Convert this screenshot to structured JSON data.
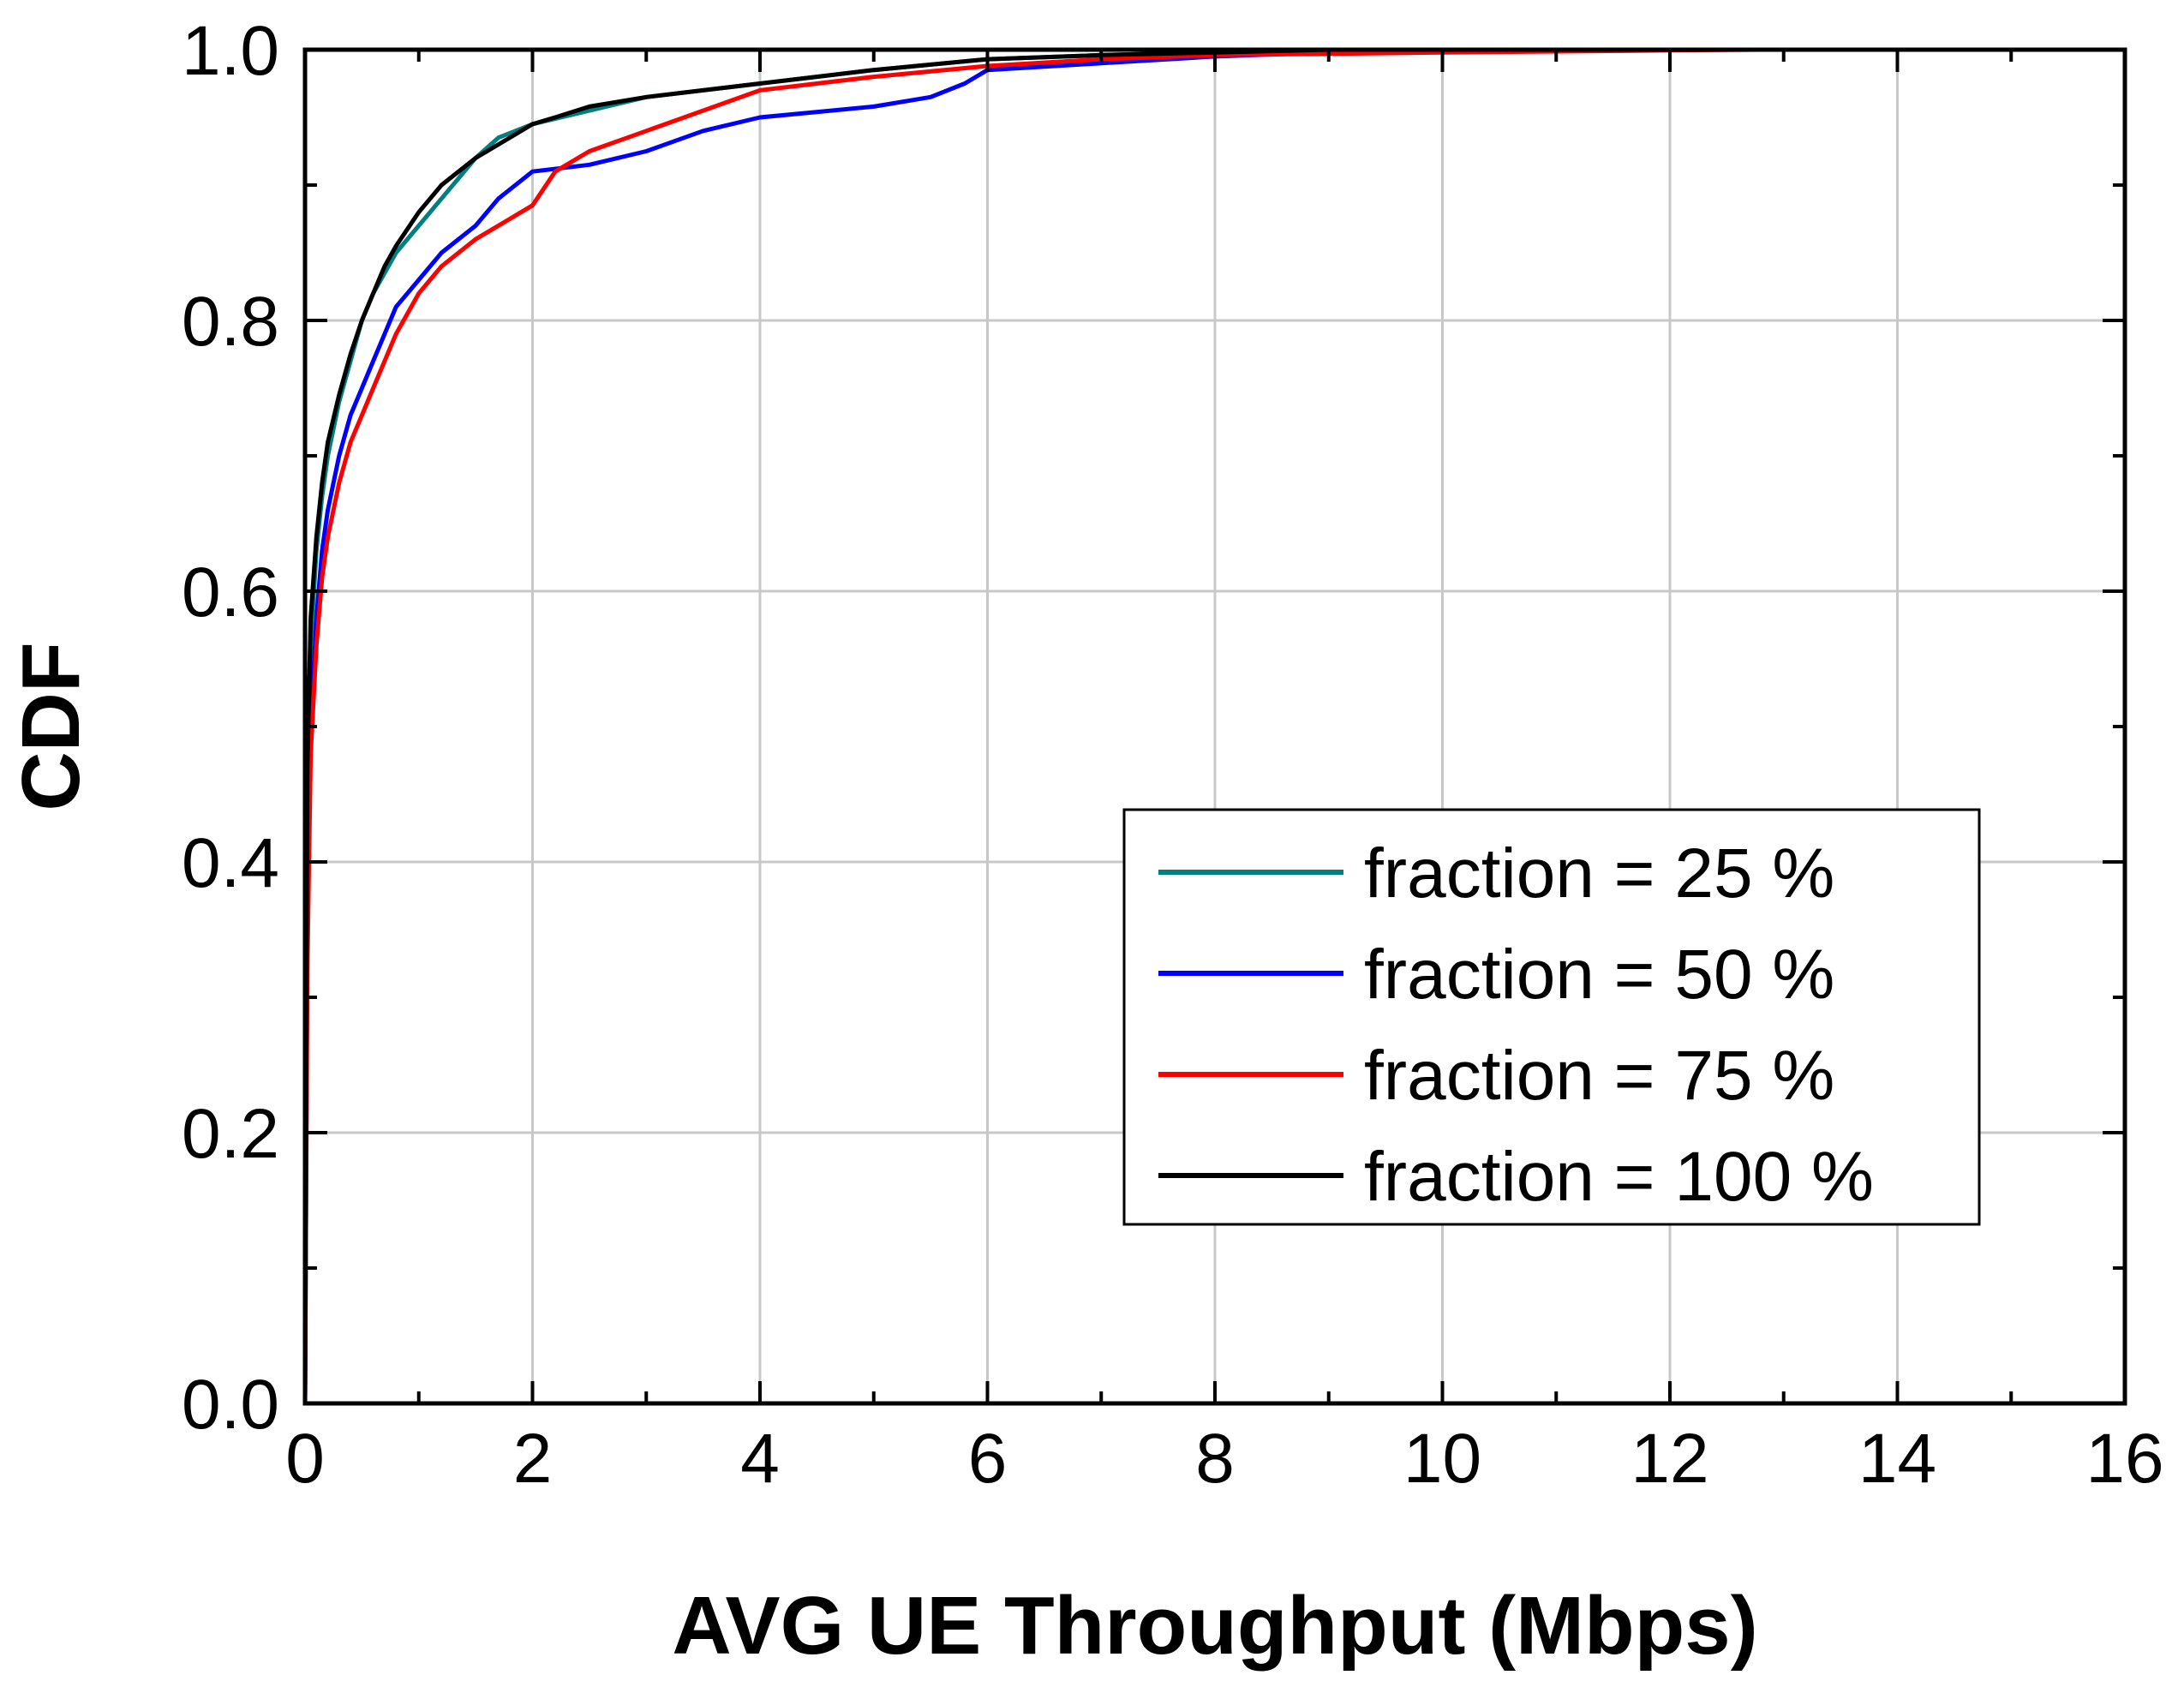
{
  "chart_data": {
    "type": "line",
    "title": "",
    "xlabel": "AVG UE Throughput (Mbps)",
    "ylabel": "CDF",
    "xlim": [
      0,
      16
    ],
    "ylim": [
      0,
      1.0
    ],
    "xticks": [
      0,
      2,
      4,
      6,
      8,
      10,
      12,
      14,
      16
    ],
    "xtick_labels": [
      "0",
      "2",
      "4",
      "6",
      "8",
      "10",
      "12",
      "14",
      "16"
    ],
    "yticks": [
      0,
      0.2,
      0.4,
      0.6,
      0.8,
      1.0
    ],
    "ytick_labels": [
      "0.0",
      "0.2",
      "0.4",
      "0.6",
      "0.8",
      "1.0"
    ],
    "grid": true,
    "legend_position": "lower-right",
    "series": [
      {
        "name": "fraction = 25 %",
        "color": "#008080",
        "x": [
          0,
          0.02,
          0.05,
          0.1,
          0.15,
          0.2,
          0.3,
          0.4,
          0.5,
          0.6,
          0.7,
          0.8,
          1.0,
          1.2,
          1.5,
          1.7,
          2.0,
          2.5,
          3.0,
          4.0,
          5.0,
          6.0,
          7.0,
          8.0,
          9.0,
          9.4
        ],
        "values": [
          0,
          0.45,
          0.56,
          0.63,
          0.67,
          0.7,
          0.74,
          0.77,
          0.8,
          0.82,
          0.835,
          0.85,
          0.87,
          0.89,
          0.92,
          0.935,
          0.945,
          0.955,
          0.965,
          0.975,
          0.985,
          0.993,
          0.996,
          0.998,
          0.999,
          1.0
        ]
      },
      {
        "name": "fraction = 50 %",
        "color": "#0000ff",
        "x": [
          0,
          0.02,
          0.05,
          0.1,
          0.15,
          0.2,
          0.3,
          0.4,
          0.5,
          0.6,
          0.8,
          1.0,
          1.2,
          1.5,
          1.7,
          2.0,
          2.5,
          3.0,
          3.5,
          4.0,
          5.0,
          5.5,
          5.8,
          6.0,
          7.0,
          8.0,
          9.0,
          9.4
        ],
        "values": [
          0,
          0.35,
          0.5,
          0.58,
          0.63,
          0.66,
          0.7,
          0.73,
          0.75,
          0.77,
          0.81,
          0.83,
          0.85,
          0.87,
          0.89,
          0.91,
          0.915,
          0.925,
          0.94,
          0.95,
          0.958,
          0.965,
          0.975,
          0.985,
          0.99,
          0.995,
          0.998,
          1.0
        ]
      },
      {
        "name": "fraction = 75 %",
        "color": "#ff0000",
        "x": [
          0,
          0.02,
          0.05,
          0.1,
          0.15,
          0.2,
          0.3,
          0.4,
          0.5,
          0.6,
          0.8,
          1.0,
          1.2,
          1.5,
          1.8,
          2.0,
          2.2,
          2.5,
          3.0,
          3.5,
          4.0,
          5.0,
          6.0,
          7.0,
          8.0,
          10.0,
          12.0,
          12.8
        ],
        "values": [
          0,
          0.32,
          0.48,
          0.56,
          0.61,
          0.64,
          0.68,
          0.71,
          0.73,
          0.75,
          0.79,
          0.82,
          0.84,
          0.86,
          0.875,
          0.885,
          0.91,
          0.925,
          0.94,
          0.955,
          0.97,
          0.98,
          0.988,
          0.993,
          0.996,
          0.998,
          0.9995,
          1.0
        ]
      },
      {
        "name": "fraction = 100 %",
        "color": "#000000",
        "x": [
          0,
          0.02,
          0.05,
          0.1,
          0.15,
          0.2,
          0.3,
          0.4,
          0.5,
          0.6,
          0.7,
          0.8,
          1.0,
          1.2,
          1.5,
          1.7,
          2.0,
          2.2,
          2.5,
          3.0,
          3.5,
          4.0,
          4.5,
          5.0,
          6.0,
          7.0,
          8.0,
          9.0
        ],
        "values": [
          0,
          0.47,
          0.58,
          0.64,
          0.68,
          0.71,
          0.745,
          0.775,
          0.8,
          0.82,
          0.84,
          0.855,
          0.88,
          0.9,
          0.92,
          0.93,
          0.945,
          0.95,
          0.958,
          0.965,
          0.97,
          0.975,
          0.98,
          0.985,
          0.993,
          0.996,
          0.998,
          1.0
        ]
      }
    ]
  }
}
